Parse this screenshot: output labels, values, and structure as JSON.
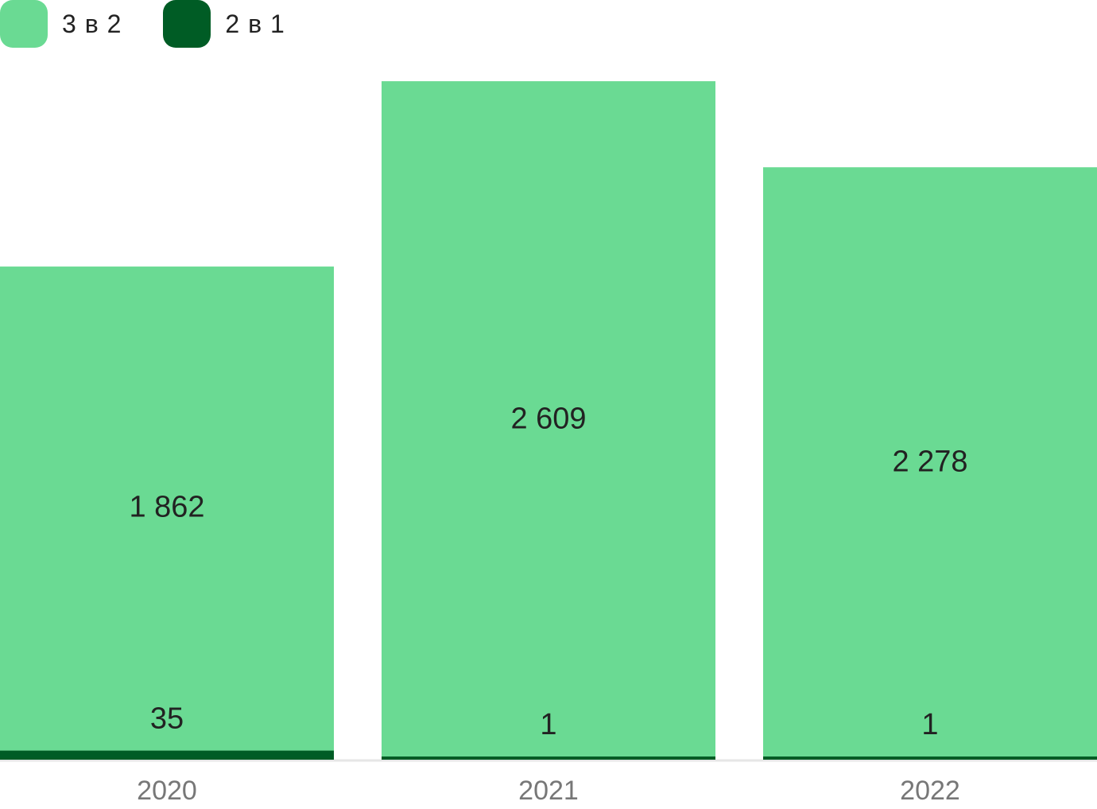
{
  "legend": [
    {
      "label": "3 в 2",
      "color": "#6ADA93"
    },
    {
      "label": "2 в 1",
      "color": "#005C25"
    }
  ],
  "chart_data": {
    "type": "bar",
    "stacked": true,
    "categories": [
      "2020",
      "2021",
      "2022"
    ],
    "series": [
      {
        "name": "2 в 1",
        "values": [
          35,
          1,
          1
        ],
        "labels": [
          "35",
          "1",
          "1"
        ],
        "color": "#005C25"
      },
      {
        "name": "3 в 2",
        "values": [
          1862,
          2609,
          2278
        ],
        "labels": [
          "1 862",
          "2 609",
          "2 278"
        ],
        "color": "#6ADA93"
      }
    ],
    "title": "",
    "xlabel": "",
    "ylabel": "",
    "ylim": [
      0,
      2800
    ],
    "grid": false,
    "legend_position": "top-left",
    "baseline_color": "#E6E6E6"
  }
}
